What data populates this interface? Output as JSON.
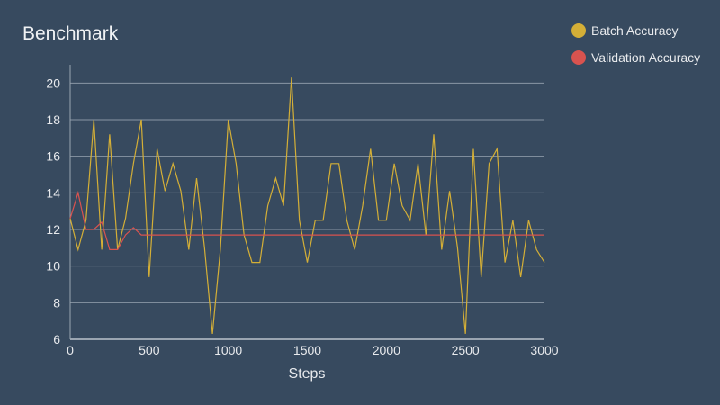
{
  "chart_data": {
    "type": "line",
    "title": "Benchmark",
    "xlabel": "Steps",
    "ylabel": "",
    "xlim": [
      0,
      3000
    ],
    "ylim": [
      6,
      21
    ],
    "xticks": [
      0,
      500,
      1000,
      1500,
      2000,
      2500,
      3000
    ],
    "yticks": [
      6,
      8,
      10,
      12,
      14,
      16,
      18,
      20
    ],
    "grid": true,
    "legend_position": "top-right",
    "series": [
      {
        "name": "Batch Accuracy",
        "color": "#d4af37",
        "points": [
          [
            0,
            12.6
          ],
          [
            50,
            10.9
          ],
          [
            100,
            12.5
          ],
          [
            150,
            18.0
          ],
          [
            200,
            10.9
          ],
          [
            250,
            17.2
          ],
          [
            300,
            10.9
          ],
          [
            350,
            12.6
          ],
          [
            400,
            15.6
          ],
          [
            450,
            18.0
          ],
          [
            500,
            9.4
          ],
          [
            550,
            16.4
          ],
          [
            600,
            14.1
          ],
          [
            650,
            15.6
          ],
          [
            700,
            14.1
          ],
          [
            750,
            10.9
          ],
          [
            800,
            14.8
          ],
          [
            850,
            11.0
          ],
          [
            900,
            6.3
          ],
          [
            950,
            10.9
          ],
          [
            1000,
            18.0
          ],
          [
            1050,
            15.6
          ],
          [
            1100,
            11.7
          ],
          [
            1150,
            10.2
          ],
          [
            1200,
            10.2
          ],
          [
            1250,
            13.3
          ],
          [
            1300,
            14.8
          ],
          [
            1350,
            13.3
          ],
          [
            1400,
            20.3
          ],
          [
            1450,
            12.5
          ],
          [
            1500,
            10.2
          ],
          [
            1550,
            12.5
          ],
          [
            1600,
            12.5
          ],
          [
            1650,
            15.6
          ],
          [
            1700,
            15.6
          ],
          [
            1750,
            12.5
          ],
          [
            1800,
            10.9
          ],
          [
            1850,
            13.3
          ],
          [
            1900,
            16.4
          ],
          [
            1950,
            12.5
          ],
          [
            2000,
            12.5
          ],
          [
            2050,
            15.6
          ],
          [
            2100,
            13.3
          ],
          [
            2150,
            12.5
          ],
          [
            2200,
            15.6
          ],
          [
            2250,
            11.7
          ],
          [
            2300,
            17.2
          ],
          [
            2350,
            10.9
          ],
          [
            2400,
            14.1
          ],
          [
            2450,
            11.0
          ],
          [
            2500,
            6.3
          ],
          [
            2550,
            16.4
          ],
          [
            2600,
            9.4
          ],
          [
            2650,
            15.6
          ],
          [
            2700,
            16.4
          ],
          [
            2750,
            10.2
          ],
          [
            2800,
            12.5
          ],
          [
            2850,
            9.4
          ],
          [
            2900,
            12.5
          ],
          [
            2950,
            10.9
          ],
          [
            3000,
            10.2
          ]
        ]
      },
      {
        "name": "Validation Accuracy",
        "color": "#d9534f",
        "points": [
          [
            0,
            12.6
          ],
          [
            50,
            14.0
          ],
          [
            100,
            12.0
          ],
          [
            150,
            12.0
          ],
          [
            200,
            12.4
          ],
          [
            250,
            10.9
          ],
          [
            300,
            10.9
          ],
          [
            350,
            11.7
          ],
          [
            400,
            12.1
          ],
          [
            450,
            11.7
          ],
          [
            500,
            11.7
          ],
          [
            3000,
            11.7
          ]
        ]
      }
    ]
  }
}
